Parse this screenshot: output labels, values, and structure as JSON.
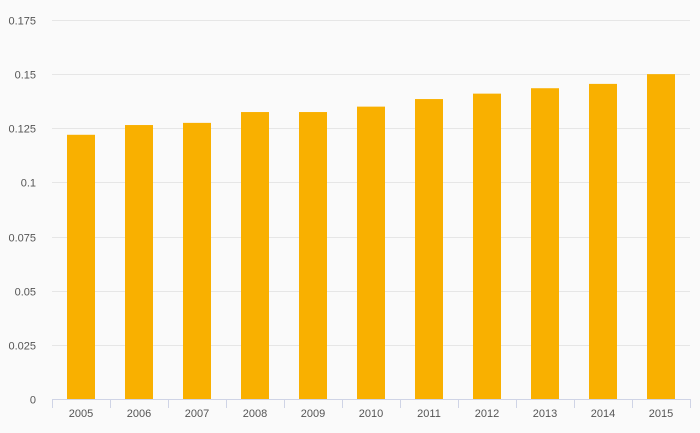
{
  "chart_data": {
    "type": "bar",
    "title": "",
    "xlabel": "",
    "ylabel": "",
    "categories": [
      "2005",
      "2006",
      "2007",
      "2008",
      "2009",
      "2010",
      "2011",
      "2012",
      "2013",
      "2014",
      "2015"
    ],
    "values": [
      0.122,
      0.1265,
      0.1275,
      0.1325,
      0.1325,
      0.135,
      0.1385,
      0.141,
      0.1435,
      0.1455,
      0.15
    ],
    "ylim": [
      0,
      0.175
    ],
    "yticks": [
      0,
      0.025,
      0.05,
      0.075,
      0.1,
      0.125,
      0.15,
      0.175
    ],
    "ytick_labels": [
      "0",
      "0.025",
      "0.05",
      "0.075",
      "0.1",
      "0.125",
      "0.15",
      "0.175"
    ],
    "grid": true,
    "legend": "none",
    "bar_color": "#f9b000",
    "grid_color": "#e6e6e6",
    "axis_color": "#cfd4e6",
    "background": "#fafafa"
  }
}
